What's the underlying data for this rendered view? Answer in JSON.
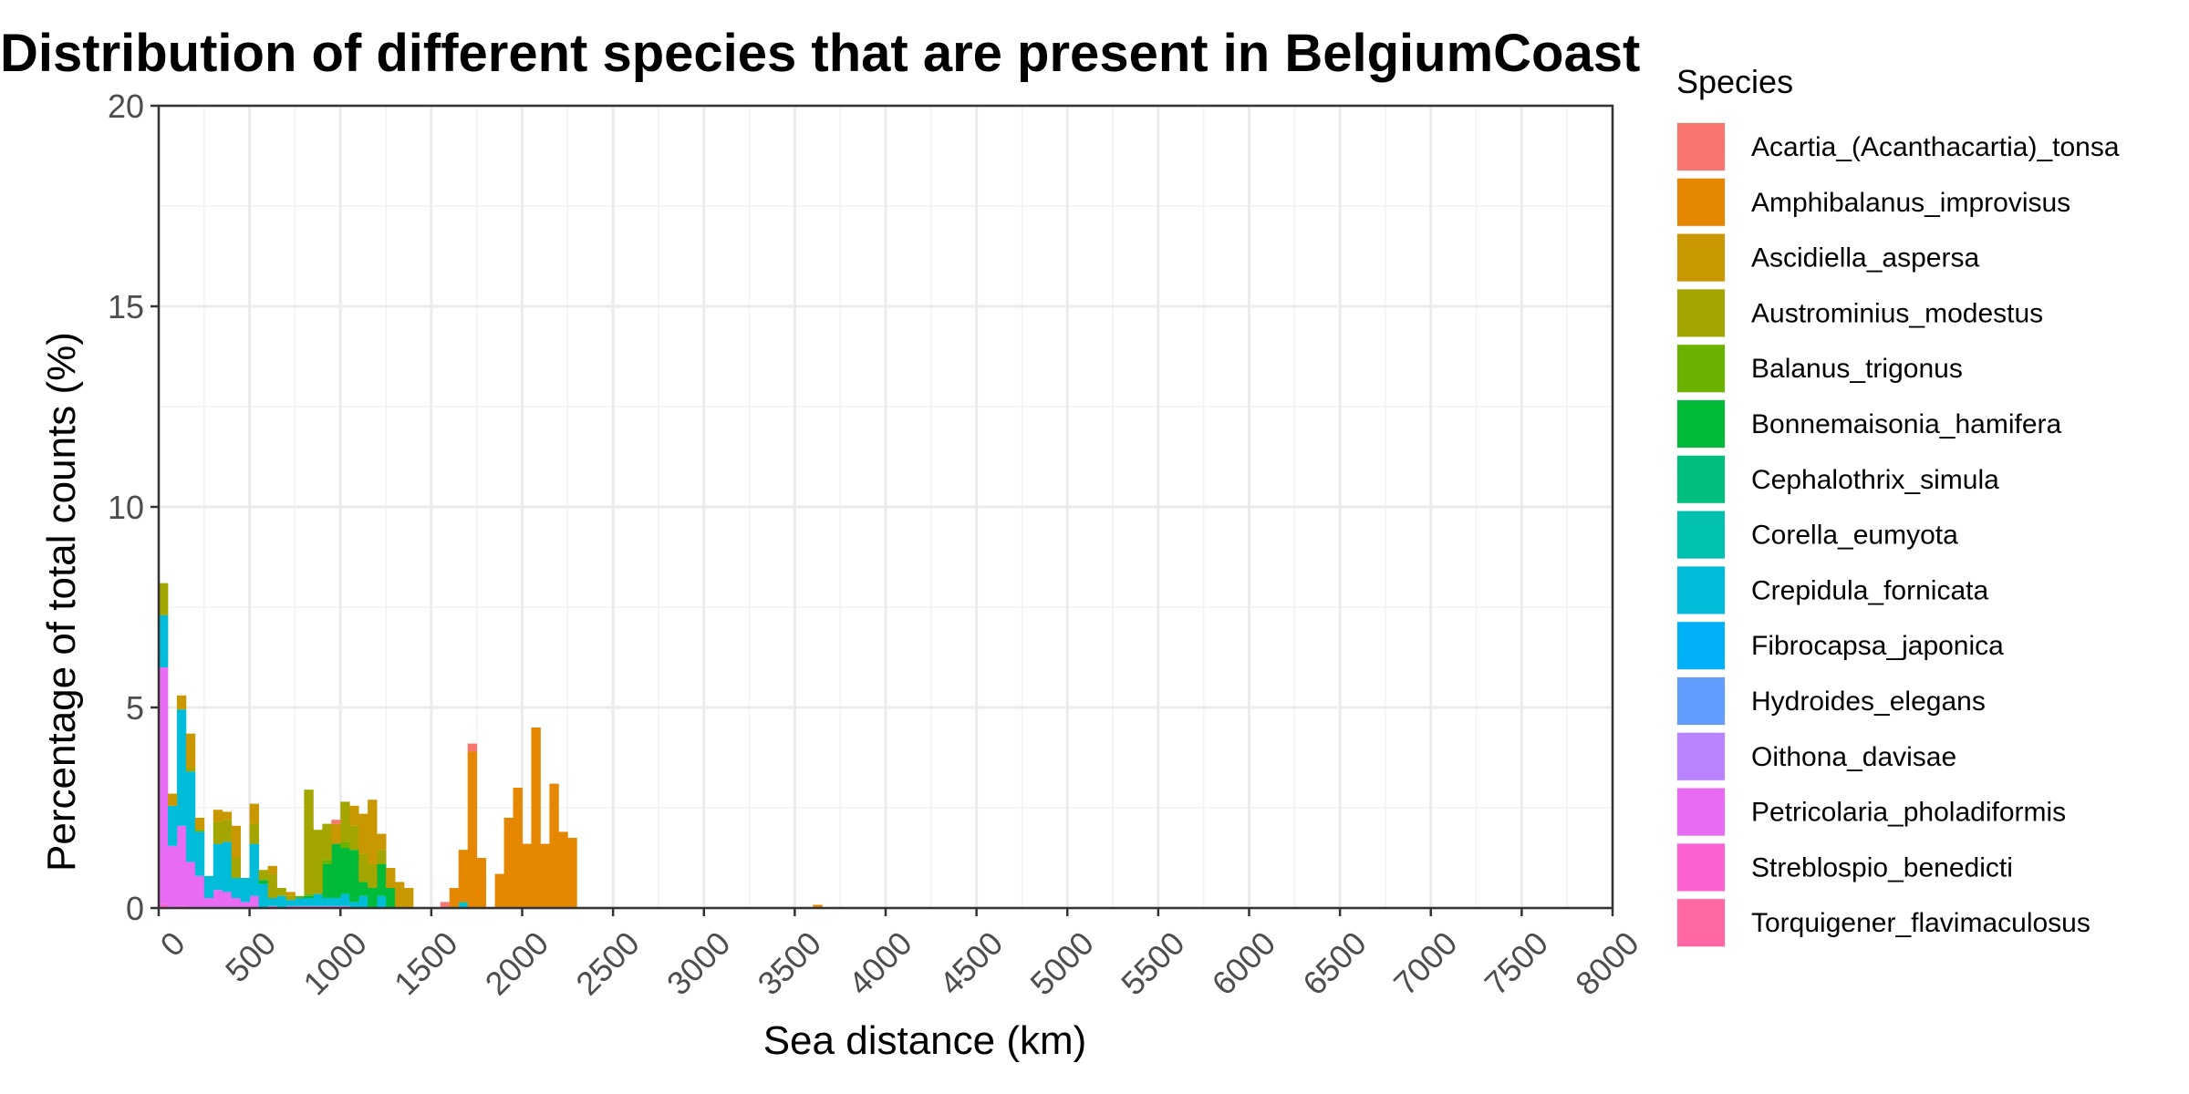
{
  "chart_data": {
    "type": "bar",
    "stacked": true,
    "title": "Distribution of different species that are present in BelgiumCoast",
    "xlabel": "Sea distance (km)",
    "ylabel": "Percentage of total counts (%)",
    "xlim": [
      0,
      8000
    ],
    "ylim": [
      0,
      20
    ],
    "bin_width_km": 50,
    "x_ticks": [
      "0",
      "500",
      "1000",
      "1500",
      "2000",
      "2500",
      "3000",
      "3500",
      "4000",
      "4500",
      "5000",
      "5500",
      "6000",
      "6500",
      "7000",
      "7500",
      "8000"
    ],
    "y_ticks": [
      "0",
      "5",
      "10",
      "15",
      "20"
    ],
    "grid": true,
    "legend": {
      "title": "Species",
      "position": "right"
    },
    "series": [
      {
        "name": "Acartia_(Acanthacartia)_tonsa",
        "color": "#F8766D",
        "points": [
          [
            975,
            0.1
          ],
          [
            1575,
            0.15
          ],
          [
            1725,
            0.2
          ]
        ]
      },
      {
        "name": "Amphibalanus_improvisus",
        "color": "#E58700",
        "points": [
          [
            1625,
            0.5
          ],
          [
            1675,
            1.3
          ],
          [
            1725,
            3.9
          ],
          [
            1775,
            1.25
          ],
          [
            1875,
            0.85
          ],
          [
            1925,
            2.25
          ],
          [
            1975,
            3.0
          ],
          [
            2025,
            1.6
          ],
          [
            2075,
            4.5
          ],
          [
            2125,
            1.6
          ],
          [
            2175,
            3.1
          ],
          [
            2225,
            1.9
          ],
          [
            2275,
            1.75
          ],
          [
            3625,
            0.08
          ]
        ]
      },
      {
        "name": "Ascidiella_aspersa",
        "color": "#C99800",
        "points": [
          [
            75,
            0.3
          ],
          [
            125,
            0.35
          ],
          [
            175,
            0.85
          ],
          [
            225,
            0.3
          ],
          [
            325,
            0.3
          ],
          [
            375,
            0.2
          ],
          [
            425,
            0.8
          ],
          [
            525,
            0.5
          ],
          [
            625,
            0.2
          ],
          [
            725,
            0.1
          ],
          [
            975,
            0.5
          ],
          [
            1075,
            0.5
          ],
          [
            1125,
            1.0
          ],
          [
            1175,
            1.6
          ],
          [
            1225,
            0.4
          ],
          [
            1275,
            0.5
          ],
          [
            1325,
            0.65
          ],
          [
            1375,
            0.5
          ]
        ]
      },
      {
        "name": "Austrominius_modestus",
        "color": "#A3A500",
        "points": [
          [
            25,
            0.8
          ],
          [
            175,
            0.1
          ],
          [
            325,
            0.55
          ],
          [
            375,
            0.55
          ],
          [
            425,
            0.5
          ],
          [
            525,
            0.5
          ],
          [
            575,
            0.25
          ],
          [
            625,
            0.6
          ],
          [
            675,
            0.2
          ],
          [
            725,
            0.1
          ],
          [
            825,
            2.6
          ],
          [
            875,
            1.6
          ],
          [
            925,
            0.9
          ],
          [
            1025,
            1.0
          ],
          [
            1075,
            0.6
          ],
          [
            1125,
            0.7
          ],
          [
            1175,
            0.6
          ],
          [
            1225,
            0.35
          ]
        ]
      },
      {
        "name": "Balanus_trigonus",
        "color": "#6BB100",
        "points": [
          [
            225,
            0.05
          ],
          [
            775,
            0.05
          ],
          [
            825,
            0.05
          ],
          [
            925,
            0.1
          ],
          [
            1025,
            0.15
          ]
        ]
      },
      {
        "name": "Bonnemaisonia_hamifera",
        "color": "#00BA38",
        "points": [
          [
            575,
            0.1
          ],
          [
            825,
            0.05
          ],
          [
            925,
            0.85
          ],
          [
            975,
            1.35
          ],
          [
            1025,
            1.15
          ],
          [
            1075,
            1.3
          ],
          [
            1125,
            0.35
          ],
          [
            1175,
            0.5
          ],
          [
            1225,
            0.8
          ],
          [
            1275,
            0.5
          ]
        ]
      },
      {
        "name": "Cephalothrix_simula",
        "color": "#00BF7D",
        "points": []
      },
      {
        "name": "Corella_eumyota",
        "color": "#00C0AF",
        "points": [
          [
            1675,
            0.05
          ]
        ]
      },
      {
        "name": "Crepidula_fornicata",
        "color": "#00BCD8",
        "points": [
          [
            25,
            1.3
          ],
          [
            75,
            1.0
          ],
          [
            125,
            2.9
          ],
          [
            175,
            2.25
          ],
          [
            225,
            1.1
          ],
          [
            275,
            0.55
          ],
          [
            325,
            1.15
          ],
          [
            375,
            1.25
          ],
          [
            425,
            0.5
          ],
          [
            475,
            0.6
          ],
          [
            525,
            1.3
          ],
          [
            575,
            0.6
          ],
          [
            625,
            0.2
          ],
          [
            675,
            0.3
          ],
          [
            725,
            0.15
          ],
          [
            775,
            0.2
          ],
          [
            825,
            0.2
          ],
          [
            875,
            0.3
          ],
          [
            925,
            0.2
          ],
          [
            975,
            0.2
          ],
          [
            1025,
            0.3
          ],
          [
            1075,
            0.15
          ],
          [
            1125,
            0.3
          ],
          [
            1225,
            0.3
          ],
          [
            1675,
            0.1
          ]
        ]
      },
      {
        "name": "Fibrocapsa_japonica",
        "color": "#00B0F6",
        "points": []
      },
      {
        "name": "Hydroides_elegans",
        "color": "#619CFF",
        "points": []
      },
      {
        "name": "Oithona_davisae",
        "color": "#B983FF",
        "points": []
      },
      {
        "name": "Petricolaria_pholadiformis",
        "color": "#E76BF3",
        "points": [
          [
            25,
            5.9
          ],
          [
            75,
            1.55
          ],
          [
            125,
            2.0
          ],
          [
            175,
            1.15
          ],
          [
            225,
            0.8
          ],
          [
            275,
            0.25
          ],
          [
            325,
            0.45
          ],
          [
            375,
            0.4
          ],
          [
            425,
            0.25
          ],
          [
            475,
            0.15
          ],
          [
            525,
            0.3
          ],
          [
            625,
            0.05
          ],
          [
            725,
            0.05
          ],
          [
            775,
            0.05
          ],
          [
            825,
            0.05
          ],
          [
            875,
            0.05
          ],
          [
            925,
            0.05
          ],
          [
            975,
            0.05
          ],
          [
            1025,
            0.05
          ]
        ]
      },
      {
        "name": "Streblospio_benedicti",
        "color": "#FD61D1",
        "points": [
          [
            25,
            0.1
          ],
          [
            125,
            0.05
          ]
        ]
      },
      {
        "name": "Torquigener_flavimaculosus",
        "color": "#FF67A4",
        "points": []
      }
    ]
  }
}
